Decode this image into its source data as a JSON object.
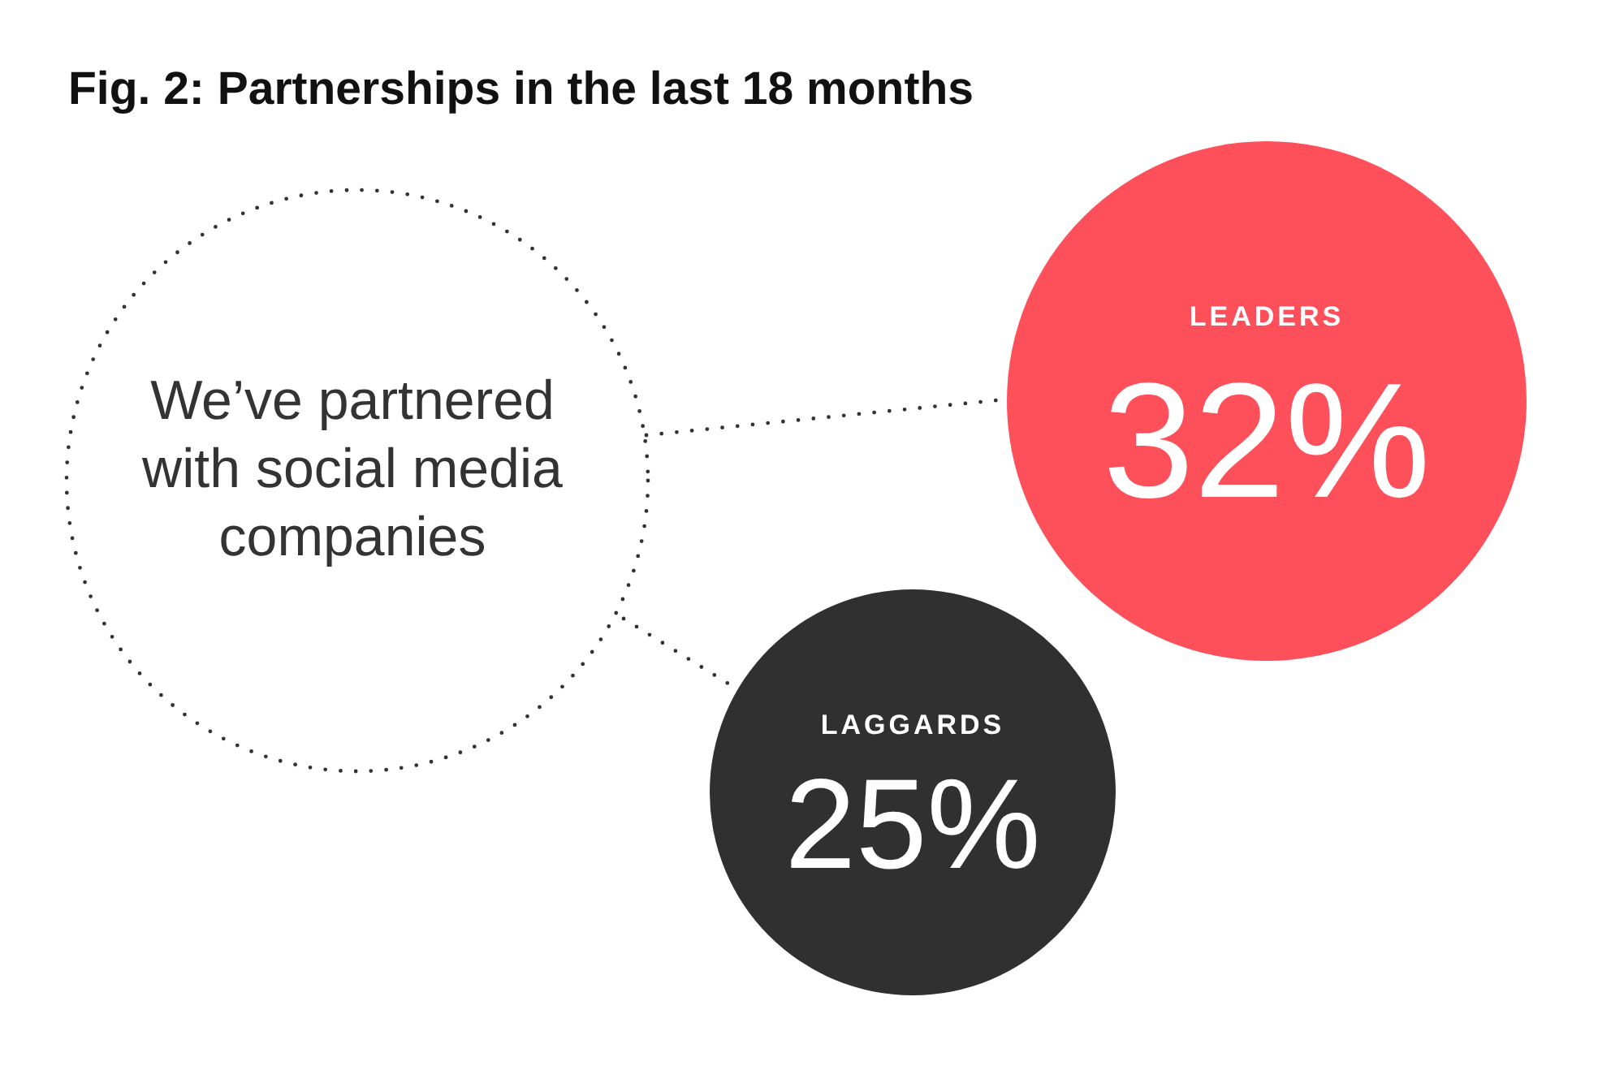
{
  "chart_data": {
    "type": "other",
    "title": "Fig. 2: Partnerships in the last 18 months",
    "categories": [
      "LEADERS",
      "LAGGARDS"
    ],
    "values": [
      32,
      25
    ],
    "value_labels": [
      "32%",
      "25%"
    ],
    "colors": [
      "#fe505b",
      "#303030"
    ],
    "annotations": [
      "We’ve partnered with social media companies"
    ]
  }
}
